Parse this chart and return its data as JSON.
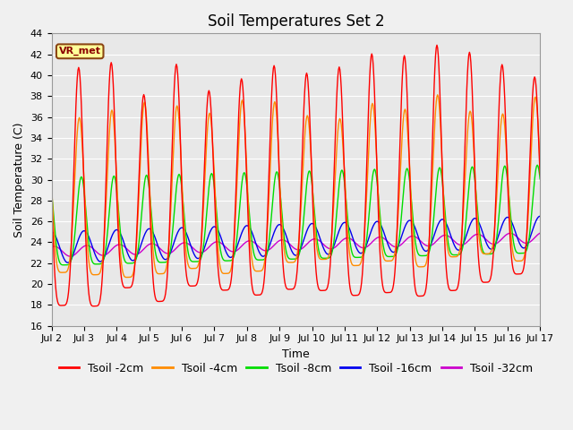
{
  "title": "Soil Temperatures Set 2",
  "xlabel": "Time",
  "ylabel": "Soil Temperature (C)",
  "ylim": [
    16,
    44
  ],
  "xlim_days": [
    2,
    17
  ],
  "annotation": "VR_met",
  "plot_bg_color": "#e8e8e8",
  "fig_bg_color": "#f0f0f0",
  "grid_color": "#ffffff",
  "lines": {
    "Tsoil -2cm": {
      "color": "#ff0000",
      "linewidth": 1.0
    },
    "Tsoil -4cm": {
      "color": "#ff8c00",
      "linewidth": 1.0
    },
    "Tsoil -8cm": {
      "color": "#00dd00",
      "linewidth": 1.0
    },
    "Tsoil -16cm": {
      "color": "#0000ee",
      "linewidth": 1.0
    },
    "Tsoil -32cm": {
      "color": "#cc00cc",
      "linewidth": 1.0
    }
  },
  "xtick_labels": [
    "Jul 2",
    "Jul 3",
    "Jul 4",
    "Jul 5",
    "Jul 6",
    "Jul 7",
    "Jul 8",
    "Jul 9",
    "Jul 10",
    "Jul 11",
    "Jul 12",
    "Jul 13",
    "Jul 14",
    "Jul 15",
    "Jul 16",
    "Jul 17"
  ],
  "xtick_positions": [
    2,
    3,
    4,
    5,
    6,
    7,
    8,
    9,
    10,
    11,
    12,
    13,
    14,
    15,
    16,
    17
  ],
  "ytick_positions": [
    16,
    18,
    20,
    22,
    24,
    26,
    28,
    30,
    32,
    34,
    36,
    38,
    40,
    42,
    44
  ],
  "title_fontsize": 12,
  "axis_label_fontsize": 9,
  "tick_fontsize": 8,
  "legend_fontsize": 9,
  "figsize": [
    6.4,
    4.8
  ],
  "dpi": 100
}
